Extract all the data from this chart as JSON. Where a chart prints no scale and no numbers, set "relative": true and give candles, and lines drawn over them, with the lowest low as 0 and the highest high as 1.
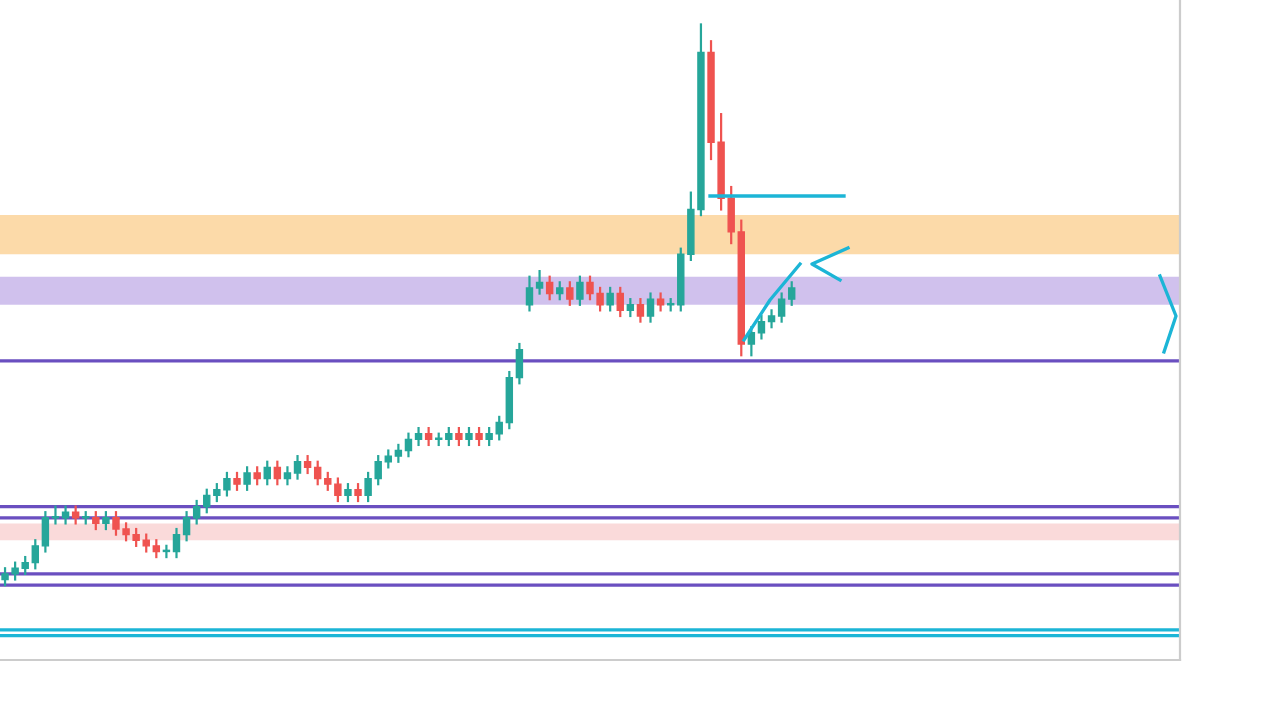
{
  "chart_data": {
    "type": "candlestick",
    "relative": true,
    "categories": [
      null,
      null,
      null,
      null,
      null,
      null,
      null,
      null,
      null,
      null,
      null,
      null,
      null,
      null,
      null,
      null,
      null,
      null,
      null,
      null,
      null,
      null,
      null,
      null,
      null,
      null,
      null,
      null,
      null,
      null,
      null,
      null,
      null,
      null,
      null,
      null,
      null,
      null,
      null,
      null,
      null,
      null,
      null,
      null,
      null,
      null,
      null,
      null,
      null,
      null,
      null,
      null,
      null,
      null,
      null,
      null,
      null,
      null,
      null,
      null,
      null,
      null,
      null,
      null,
      null,
      null,
      null,
      null,
      null,
      null,
      null,
      null,
      null,
      null,
      null,
      null,
      null,
      null,
      null,
      null,
      null,
      null,
      null,
      null,
      null,
      null,
      null,
      null,
      null,
      null,
      null,
      null,
      null,
      null,
      null,
      null,
      null,
      null,
      null,
      null,
      null,
      null,
      null,
      null,
      null,
      null,
      null,
      null,
      null,
      null,
      null,
      null,
      null,
      null,
      null,
      null,
      null
    ],
    "colors": [
      "#26a69a",
      "#26a69a",
      "#26a69a",
      "#26a69a",
      "#26a69a",
      "#26a69a",
      "#26a69a",
      "#ef5350",
      "#26a69a",
      "#ef5350",
      "#26a69a",
      "#ef5350",
      "#ef5350",
      "#ef5350",
      "#ef5350",
      "#ef5350",
      "#26a69a",
      "#26a69a",
      "#26a69a",
      "#26a69a",
      "#26a69a",
      "#26a69a",
      "#26a69a",
      "#ef5350",
      "#26a69a",
      "#ef5350",
      "#26a69a",
      "#ef5350",
      "#26a69a",
      "#26a69a",
      "#ef5350",
      "#ef5350",
      "#ef5350",
      "#ef5350",
      "#26a69a",
      "#ef5350",
      "#26a69a",
      "#26a69a",
      "#26a69a",
      "#26a69a",
      "#26a69a",
      "#26a69a",
      "#ef5350",
      "#26a69a",
      "#26a69a",
      "#ef5350",
      "#26a69a",
      "#ef5350",
      "#26a69a",
      "#26a69a",
      "#26a69a",
      "#26a69a",
      "#26a69a",
      "#26a69a",
      "#ef5350",
      "#26a69a",
      "#ef5350",
      "#26a69a",
      "#ef5350",
      "#ef5350",
      "#26a69a",
      "#ef5350",
      "#26a69a",
      "#ef5350",
      "#26a69a",
      "#ef5350",
      "#26a69a",
      "#26a69a",
      "#26a69a",
      "#26a69a",
      "#ef5350",
      "#ef5350",
      "#ef5350",
      "#ef5350",
      "#26a69a",
      "#26a69a",
      "#26a69a",
      "#26a69a",
      "#26a69a",
      null,
      null,
      null,
      null,
      null,
      null,
      null,
      null,
      null,
      null,
      null,
      null,
      null,
      null,
      null,
      null,
      null,
      null,
      null,
      null,
      null,
      null,
      null,
      null,
      null,
      null,
      null,
      null,
      null,
      null,
      null,
      null,
      null,
      null,
      null,
      null,
      null,
      null
    ],
    "ohlc": [
      [
        0.01,
        0.03,
        0,
        0.02
      ],
      [
        0.02,
        0.04,
        0.01,
        0.03
      ],
      [
        0.03,
        0.05,
        0.02,
        0.04
      ],
      [
        0.04,
        0.08,
        0.03,
        0.07
      ],
      [
        0.07,
        0.13,
        0.06,
        0.12
      ],
      [
        0.12,
        0.14,
        0.11,
        0.12
      ],
      [
        0.12,
        0.14,
        0.11,
        0.13
      ],
      [
        0.13,
        0.14,
        0.11,
        0.12
      ],
      [
        0.12,
        0.13,
        0.11,
        0.12
      ],
      [
        0.12,
        0.13,
        0.1,
        0.11
      ],
      [
        0.11,
        0.13,
        0.1,
        0.12
      ],
      [
        0.12,
        0.13,
        0.09,
        0.1
      ],
      [
        0.1,
        0.11,
        0.08,
        0.09
      ],
      [
        0.09,
        0.1,
        0.07,
        0.08
      ],
      [
        0.08,
        0.09,
        0.06,
        0.07
      ],
      [
        0.07,
        0.08,
        0.05,
        0.06
      ],
      [
        0.06,
        0.07,
        0.05,
        0.06
      ],
      [
        0.06,
        0.1,
        0.05,
        0.09
      ],
      [
        0.09,
        0.13,
        0.08,
        0.12
      ],
      [
        0.12,
        0.15,
        0.11,
        0.14
      ],
      [
        0.14,
        0.17,
        0.13,
        0.16
      ],
      [
        0.16,
        0.18,
        0.15,
        0.17
      ],
      [
        0.17,
        0.2,
        0.16,
        0.19
      ],
      [
        0.19,
        0.2,
        0.17,
        0.18
      ],
      [
        0.18,
        0.21,
        0.17,
        0.2
      ],
      [
        0.2,
        0.21,
        0.18,
        0.19
      ],
      [
        0.19,
        0.22,
        0.18,
        0.21
      ],
      [
        0.21,
        0.22,
        0.18,
        0.19
      ],
      [
        0.19,
        0.21,
        0.18,
        0.2
      ],
      [
        0.2,
        0.23,
        0.19,
        0.22
      ],
      [
        0.22,
        0.23,
        0.2,
        0.21
      ],
      [
        0.21,
        0.22,
        0.18,
        0.19
      ],
      [
        0.19,
        0.2,
        0.17,
        0.18
      ],
      [
        0.18,
        0.19,
        0.15,
        0.16
      ],
      [
        0.16,
        0.18,
        0.15,
        0.17
      ],
      [
        0.17,
        0.18,
        0.15,
        0.16
      ],
      [
        0.16,
        0.2,
        0.15,
        0.19
      ],
      [
        0.19,
        0.23,
        0.18,
        0.22
      ],
      [
        0.22,
        0.24,
        0.21,
        0.23
      ],
      [
        0.23,
        0.25,
        0.22,
        0.24
      ],
      [
        0.24,
        0.27,
        0.23,
        0.26
      ],
      [
        0.26,
        0.28,
        0.25,
        0.27
      ],
      [
        0.27,
        0.28,
        0.25,
        0.26
      ],
      [
        0.26,
        0.27,
        0.25,
        0.26
      ],
      [
        0.26,
        0.28,
        0.25,
        0.27
      ],
      [
        0.27,
        0.28,
        0.25,
        0.26
      ],
      [
        0.26,
        0.28,
        0.25,
        0.27
      ],
      [
        0.27,
        0.28,
        0.25,
        0.26
      ],
      [
        0.26,
        0.28,
        0.25,
        0.27
      ],
      [
        0.27,
        0.3,
        0.26,
        0.29
      ],
      [
        0.29,
        0.38,
        0.28,
        0.37
      ],
      [
        0.37,
        0.43,
        0.36,
        0.42
      ],
      [
        0.5,
        0.55,
        0.49,
        0.53
      ],
      [
        0.53,
        0.56,
        0.52,
        0.54
      ],
      [
        0.54,
        0.55,
        0.51,
        0.52
      ],
      [
        0.52,
        0.54,
        0.51,
        0.53
      ],
      [
        0.53,
        0.54,
        0.5,
        0.51
      ],
      [
        0.51,
        0.55,
        0.5,
        0.54
      ],
      [
        0.54,
        0.55,
        0.51,
        0.52
      ],
      [
        0.52,
        0.53,
        0.49,
        0.5
      ],
      [
        0.5,
        0.53,
        0.49,
        0.52
      ],
      [
        0.52,
        0.53,
        0.48,
        0.49
      ],
      [
        0.49,
        0.51,
        0.48,
        0.5
      ],
      [
        0.5,
        0.51,
        0.47,
        0.48
      ],
      [
        0.48,
        0.52,
        0.47,
        0.51
      ],
      [
        0.51,
        0.52,
        0.49,
        0.5
      ],
      [
        0.5,
        0.51,
        0.49,
        0.5
      ],
      [
        0.5,
        0.6,
        0.49,
        0.59
      ],
      [
        0.59,
        0.7,
        0.58,
        0.67
      ],
      [
        0.67,
        1.0,
        0.66,
        0.95
      ],
      [
        0.95,
        0.97,
        0.76,
        0.79
      ],
      [
        0.79,
        0.84,
        0.67,
        0.69
      ],
      [
        0.69,
        0.71,
        0.61,
        0.63
      ],
      [
        0.63,
        0.65,
        0.41,
        0.43
      ],
      [
        0.43,
        0.46,
        0.41,
        0.45
      ],
      [
        0.45,
        0.48,
        0.44,
        0.47
      ],
      [
        0.47,
        0.49,
        0.46,
        0.48
      ],
      [
        0.48,
        0.52,
        0.47,
        0.51
      ],
      [
        0.51,
        0.54,
        0.5,
        0.53
      ],
      null,
      null,
      null,
      null,
      null,
      null,
      null,
      null,
      null,
      null,
      null,
      null,
      null,
      null,
      null,
      null,
      null,
      null,
      null,
      null,
      null,
      null,
      null,
      null,
      null,
      null,
      null,
      null,
      null,
      null,
      null,
      null,
      null,
      null,
      null,
      null,
      null,
      null
    ],
    "bands": [
      {
        "axis": "y",
        "from": 0.59,
        "to": 0.66,
        "color": "#fcd49a"
      },
      {
        "axis": "y",
        "from": 0.5,
        "to": 0.55,
        "color": "#c8b6ea"
      },
      {
        "axis": "y",
        "from": 0.08,
        "to": 0.11,
        "color": "#f9d3d3"
      }
    ],
    "ref_lines": [
      {
        "axis": "y",
        "value": 0.4,
        "color": "#6a4fc0"
      },
      {
        "axis": "y",
        "value": 0.14,
        "color": "#6a4fc0"
      },
      {
        "axis": "y",
        "value": 0.12,
        "color": "#6a4fc0"
      },
      {
        "axis": "y",
        "value": 0.02,
        "color": "#6a4fc0"
      },
      {
        "axis": "y",
        "value": 0.0,
        "color": "#6a4fc0"
      },
      {
        "axis": "y",
        "value": -0.08,
        "color": "#1cb5d6"
      },
      {
        "axis": "y",
        "value": -0.09,
        "color": "#1cb5d6"
      }
    ]
  }
}
